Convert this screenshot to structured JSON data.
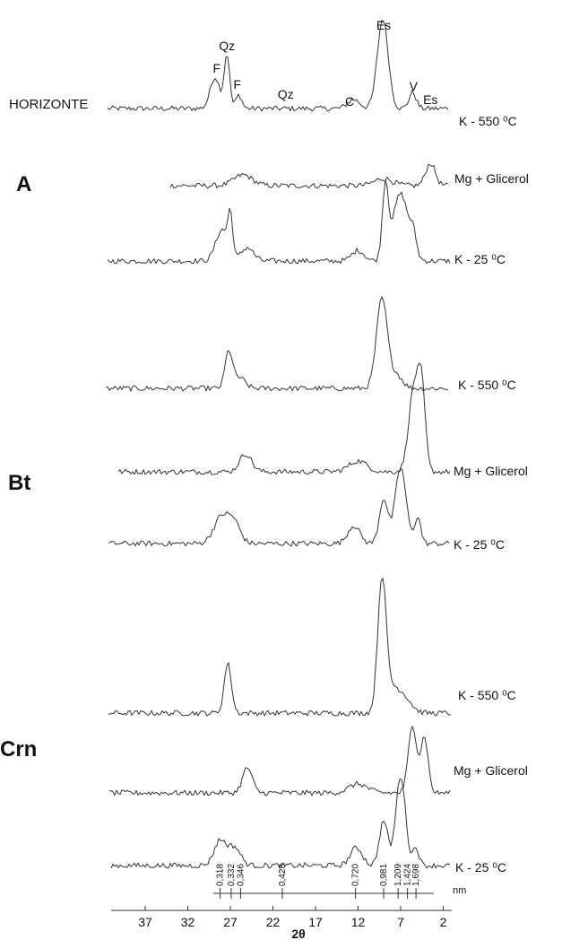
{
  "chart_data": {
    "type": "line",
    "title": "",
    "horizon_label": "HORIZONTE",
    "xlabel": "2θ",
    "d_unit": "nm",
    "x_reversed": true,
    "xlim": [
      41,
      1
    ],
    "x_ticks": [
      37,
      32,
      27,
      22,
      17,
      12,
      7,
      2
    ],
    "d_spacing_markers": [
      {
        "label": "0,318",
        "x": 28.2
      },
      {
        "label": "0,332",
        "x": 26.9
      },
      {
        "label": "0,346",
        "x": 25.8
      },
      {
        "label": "0,428",
        "x": 20.9
      },
      {
        "label": "0,720",
        "x": 12.3
      },
      {
        "label": "0,981",
        "x": 9.0
      },
      {
        "label": "1,209",
        "x": 7.3
      },
      {
        "label": "1,424",
        "x": 6.2
      },
      {
        "label": "1,698",
        "x": 5.2
      }
    ],
    "peak_labels": [
      {
        "text": "F",
        "x": 28.6
      },
      {
        "text": "Qz",
        "x": 27.4
      },
      {
        "text": "F",
        "x": 26.2
      },
      {
        "text": "Qz",
        "x": 20.5
      },
      {
        "text": "C",
        "x": 13.0
      },
      {
        "text": "Es",
        "x": 9.0
      },
      {
        "text": "V",
        "x": 5.5
      },
      {
        "text": "Es",
        "x": 3.5
      }
    ],
    "groups": [
      {
        "name": "A",
        "start_index": 1
      },
      {
        "name": "Bt",
        "start_index": 4
      },
      {
        "name": "Crn",
        "start_index": 7
      }
    ],
    "series": [
      {
        "name": "K - 550 ⁰C",
        "peaks": [
          [
            28.8,
            0.35,
            0.8
          ],
          [
            27.4,
            0.6,
            0.45
          ],
          [
            26.0,
            0.15,
            0.5
          ],
          [
            12.5,
            0.1,
            1.0
          ],
          [
            9.1,
            1.0,
            0.9
          ],
          [
            5.6,
            0.18,
            0.6
          ]
        ],
        "baseline": 0.06,
        "noise": 0.03
      },
      {
        "name": "Mg + Glicerol",
        "peaks": [
          [
            25.5,
            0.12,
            1.5
          ],
          [
            9.0,
            0.08,
            1.5
          ],
          [
            3.5,
            0.25,
            0.8
          ]
        ],
        "baseline": 0.02,
        "noise": 0.03
      },
      {
        "name": "K - 25 ⁰C",
        "peaks": [
          [
            28.0,
            0.35,
            1.0
          ],
          [
            27.0,
            0.45,
            0.4
          ],
          [
            25.0,
            0.15,
            1.0
          ],
          [
            12.0,
            0.12,
            1.0
          ],
          [
            8.8,
            0.8,
            0.5
          ],
          [
            7.0,
            0.75,
            1.3
          ],
          [
            5.5,
            0.2,
            0.5
          ]
        ],
        "baseline": 0.07,
        "noise": 0.03
      },
      {
        "name": "K - 550 ⁰C",
        "peaks": [
          [
            27.2,
            0.4,
            0.6
          ],
          [
            26.0,
            0.12,
            1.0
          ],
          [
            9.2,
            1.0,
            0.9
          ],
          [
            7.5,
            0.15,
            1.0
          ]
        ],
        "baseline": 0.07,
        "noise": 0.03
      },
      {
        "name": "Mg + Glicerol",
        "peaks": [
          [
            25.2,
            0.2,
            1.0
          ],
          [
            12.0,
            0.12,
            1.5
          ],
          [
            5.4,
            0.95,
            0.9
          ],
          [
            4.5,
            0.75,
            0.6
          ]
        ],
        "baseline": 0.04,
        "noise": 0.03
      },
      {
        "name": "K - 25 ⁰C",
        "peaks": [
          [
            28.0,
            0.3,
            1.3
          ],
          [
            26.5,
            0.2,
            1.0
          ],
          [
            12.5,
            0.2,
            1.0
          ],
          [
            9.0,
            0.5,
            0.7
          ],
          [
            7.0,
            0.85,
            0.9
          ],
          [
            5.0,
            0.3,
            0.5
          ]
        ],
        "baseline": 0.06,
        "noise": 0.03
      },
      {
        "name": "K - 550 ⁰C",
        "peaks": [
          [
            27.3,
            0.55,
            0.6
          ],
          [
            9.2,
            1.45,
            0.7
          ],
          [
            8.0,
            0.25,
            1.2
          ],
          [
            6.5,
            0.15,
            1.2
          ]
        ],
        "baseline": 0.05,
        "noise": 0.03
      },
      {
        "name": "Mg + Glicerol",
        "peaks": [
          [
            25.0,
            0.28,
            0.8
          ],
          [
            12.0,
            0.1,
            1.5
          ],
          [
            5.6,
            0.75,
            0.7
          ],
          [
            4.2,
            0.62,
            0.6
          ]
        ],
        "baseline": 0.06,
        "noise": 0.03
      },
      {
        "name": "K - 25 ⁰C",
        "peaks": [
          [
            28.2,
            0.28,
            1.0
          ],
          [
            26.5,
            0.2,
            1.0
          ],
          [
            12.2,
            0.2,
            1.0
          ],
          [
            9.0,
            0.5,
            0.7
          ],
          [
            7.0,
            1.0,
            0.8
          ],
          [
            5.2,
            0.2,
            0.5
          ]
        ],
        "baseline": 0.05,
        "noise": 0.03
      }
    ]
  }
}
